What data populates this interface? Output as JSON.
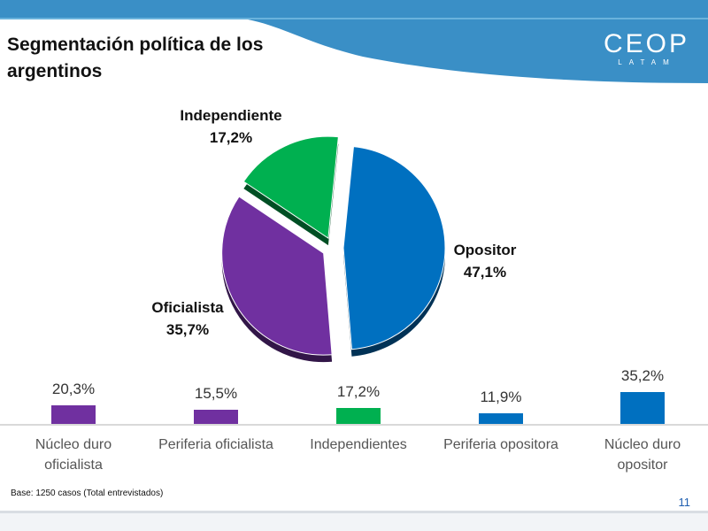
{
  "slide": {
    "title": "Segmentación política de los argentinos",
    "logo_main": "CEOP",
    "logo_sub": "LATAM",
    "base_note": "Base: 1250 casos (Total entrevistados)",
    "page_number": "11"
  },
  "colors": {
    "header_blue": "#3a8fc6",
    "header_light": "#6ab3dc",
    "purple": "#7030a0",
    "green": "#00b050",
    "blue": "#0070c0",
    "baseline": "#d9d9d9"
  },
  "chart_data": [
    {
      "type": "pie",
      "slices": [
        {
          "label": "Opositor",
          "value": 47.1,
          "display": "47,1%",
          "color": "#0070c0"
        },
        {
          "label": "Oficialista",
          "value": 35.7,
          "display": "35,7%",
          "color": "#7030a0"
        },
        {
          "label": "Independiente",
          "value": 17.2,
          "display": "17,2%",
          "color": "#00b050"
        }
      ]
    },
    {
      "type": "bar",
      "categories": [
        "Núcleo duro oficialista",
        "Periferia oficialista",
        "Independientes",
        "Periferia opositora",
        "Núcleo duro opositor"
      ],
      "category_lines": [
        [
          "Núcleo duro",
          "oficialista"
        ],
        [
          "Periferia oficialista"
        ],
        [
          "Independientes"
        ],
        [
          "Periferia opositora"
        ],
        [
          "Núcleo duro",
          "opositor"
        ]
      ],
      "values": [
        20.3,
        15.5,
        17.2,
        11.9,
        35.2
      ],
      "labels": [
        "20,3%",
        "15,5%",
        "17,2%",
        "11,9%",
        "35,2%"
      ],
      "colors": [
        "#7030a0",
        "#7030a0",
        "#00b050",
        "#0070c0",
        "#0070c0"
      ],
      "ylim": [
        0,
        35.2
      ],
      "grid": false
    }
  ]
}
